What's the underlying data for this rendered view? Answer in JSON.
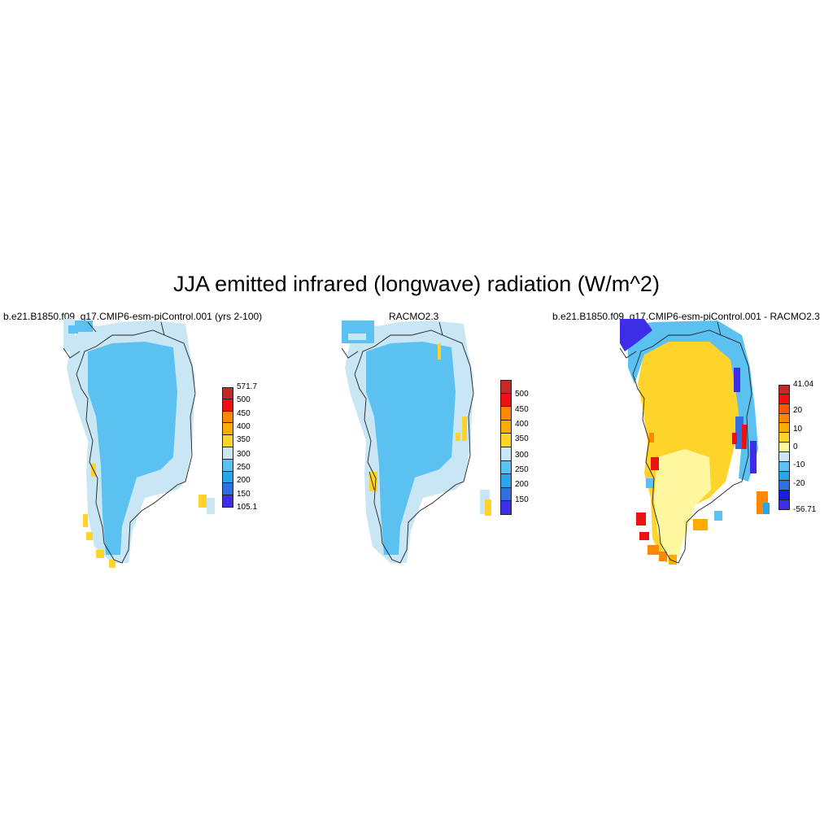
{
  "title": "JJA emitted infrared (longwave) radiation (W/m^2)",
  "panels": [
    {
      "title": "b.e21.B1850.f09_g17.CMIP6-esm-piControl.001 (yrs 2-100)",
      "colorbar": {
        "colors": [
          "#c62828",
          "#ee1111",
          "#ff8800",
          "#ffaa00",
          "#ffd42a",
          "#c9e6f5",
          "#5bc1f1",
          "#28a6e8",
          "#2f6fe0",
          "#3d2de6"
        ],
        "labels": [
          "571.7",
          "500",
          "450",
          "400",
          "350",
          "300",
          "250",
          "200",
          "150",
          "105.1"
        ]
      }
    },
    {
      "title": "RACMO2.3",
      "colorbar": {
        "colors": [
          "#c62828",
          "#ee1111",
          "#ff8800",
          "#ffaa00",
          "#ffd42a",
          "#c9e6f5",
          "#5bc1f1",
          "#28a6e8",
          "#2f6fe0",
          "#3d2de6"
        ],
        "labels": [
          "500",
          "450",
          "400",
          "350",
          "300",
          "250",
          "200",
          "150"
        ]
      }
    },
    {
      "title": "b.e21.B1850.f09_g17.CMIP6-esm-piControl.001 - RACMO2.3",
      "colorbar": {
        "colors": [
          "#c62828",
          "#ee1111",
          "#ff5500",
          "#ff8800",
          "#ffaa00",
          "#ffd42a",
          "#fff7a0",
          "#c9e6f5",
          "#5bc1f1",
          "#28a6e8",
          "#2f6fe0",
          "#1a1ae6",
          "#3d2de6"
        ],
        "labels": [
          "41.04",
          "20",
          "10",
          "0",
          "-10",
          "-20",
          "-56.71"
        ]
      }
    }
  ]
}
